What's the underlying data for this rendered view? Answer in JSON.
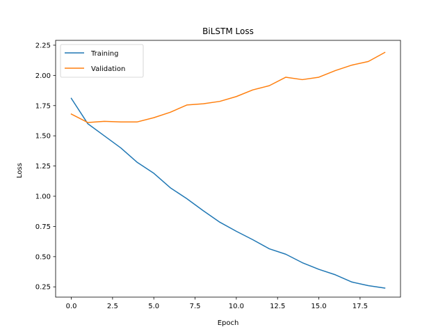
{
  "chart_data": {
    "type": "line",
    "title": "BiLSTM Loss",
    "xlabel": "Epoch",
    "ylabel": "Loss",
    "xlim": [
      -0.95,
      19.95
    ],
    "ylim": [
      0.165,
      2.29
    ],
    "x_ticks": [
      0.0,
      2.5,
      5.0,
      7.5,
      10.0,
      12.5,
      15.0,
      17.5
    ],
    "x_tick_labels": [
      "0.0",
      "2.5",
      "5.0",
      "7.5",
      "10.0",
      "12.5",
      "15.0",
      "17.5"
    ],
    "y_ticks": [
      0.25,
      0.5,
      0.75,
      1.0,
      1.25,
      1.5,
      1.75,
      2.0,
      2.25
    ],
    "y_tick_labels": [
      "0.25",
      "0.50",
      "0.75",
      "1.00",
      "1.25",
      "1.50",
      "1.75",
      "2.00",
      "2.25"
    ],
    "legend_position": "top-left",
    "grid": false,
    "x": [
      0,
      1,
      2,
      3,
      4,
      5,
      6,
      7,
      8,
      9,
      10,
      11,
      12,
      13,
      14,
      15,
      16,
      17,
      18,
      19
    ],
    "series": [
      {
        "name": "Training",
        "color": "#1f77b4",
        "values": [
          1.81,
          1.6,
          1.5,
          1.4,
          1.28,
          1.19,
          1.07,
          0.98,
          0.88,
          0.785,
          0.71,
          0.64,
          0.565,
          0.52,
          0.45,
          0.395,
          0.35,
          0.29,
          0.26,
          0.24
        ]
      },
      {
        "name": "Validation",
        "color": "#ff7f0e",
        "values": [
          1.68,
          1.61,
          1.62,
          1.615,
          1.615,
          1.65,
          1.695,
          1.755,
          1.765,
          1.785,
          1.825,
          1.88,
          1.915,
          1.985,
          1.965,
          1.985,
          2.04,
          2.085,
          2.115,
          2.19
        ]
      }
    ]
  }
}
